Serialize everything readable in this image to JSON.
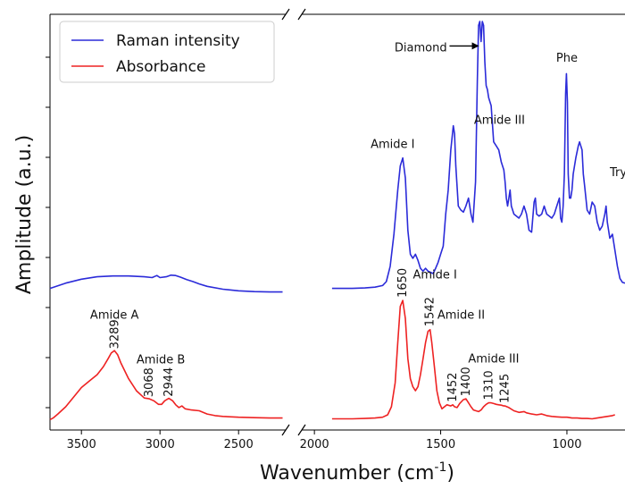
{
  "chart_data": {
    "type": "line",
    "xlabel": "Wavenumber (cm",
    "xlabel_sup": "-1",
    "xlabel_close": ")",
    "ylabel": "Amplitude (a.u.)",
    "broken_x_axis": true,
    "xlim_left": [
      3700,
      2200
    ],
    "xlim_right": [
      2050,
      770
    ],
    "xticks_left": [
      "3500",
      "3000",
      "2500"
    ],
    "xticks_right": [
      "2000",
      "1500",
      "1000"
    ],
    "legend_position": "top-left",
    "series": [
      {
        "name": "Raman intensity",
        "color": "#2b2bd9",
        "left": [
          [
            3700,
            0.335
          ],
          [
            3600,
            0.348
          ],
          [
            3500,
            0.358
          ],
          [
            3400,
            0.364
          ],
          [
            3300,
            0.366
          ],
          [
            3200,
            0.366
          ],
          [
            3100,
            0.364
          ],
          [
            3050,
            0.362
          ],
          [
            3020,
            0.367
          ],
          [
            3000,
            0.362
          ],
          [
            2960,
            0.364
          ],
          [
            2930,
            0.368
          ],
          [
            2900,
            0.367
          ],
          [
            2870,
            0.363
          ],
          [
            2830,
            0.357
          ],
          [
            2790,
            0.352
          ],
          [
            2750,
            0.346
          ],
          [
            2700,
            0.34
          ],
          [
            2600,
            0.333
          ],
          [
            2500,
            0.329
          ],
          [
            2400,
            0.327
          ],
          [
            2300,
            0.326
          ],
          [
            2220,
            0.326
          ]
        ],
        "right": [
          [
            1930,
            0.335
          ],
          [
            1900,
            0.335
          ],
          [
            1850,
            0.335
          ],
          [
            1800,
            0.336
          ],
          [
            1760,
            0.338
          ],
          [
            1730,
            0.342
          ],
          [
            1715,
            0.352
          ],
          [
            1700,
            0.39
          ],
          [
            1685,
            0.47
          ],
          [
            1670,
            0.58
          ],
          [
            1660,
            0.64
          ],
          [
            1650,
            0.66
          ],
          [
            1640,
            0.61
          ],
          [
            1630,
            0.48
          ],
          [
            1620,
            0.42
          ],
          [
            1610,
            0.41
          ],
          [
            1600,
            0.42
          ],
          [
            1590,
            0.405
          ],
          [
            1580,
            0.385
          ],
          [
            1570,
            0.378
          ],
          [
            1560,
            0.385
          ],
          [
            1550,
            0.378
          ],
          [
            1540,
            0.375
          ],
          [
            1530,
            0.372
          ],
          [
            1520,
            0.385
          ],
          [
            1510,
            0.4
          ],
          [
            1500,
            0.42
          ],
          [
            1490,
            0.44
          ],
          [
            1480,
            0.52
          ],
          [
            1470,
            0.58
          ],
          [
            1460,
            0.68
          ],
          [
            1450,
            0.74
          ],
          [
            1445,
            0.72
          ],
          [
            1440,
            0.64
          ],
          [
            1430,
            0.54
          ],
          [
            1420,
            0.53
          ],
          [
            1410,
            0.525
          ],
          [
            1400,
            0.54
          ],
          [
            1390,
            0.56
          ],
          [
            1380,
            0.52
          ],
          [
            1372,
            0.5
          ],
          [
            1362,
            0.6
          ],
          [
            1355,
            0.85
          ],
          [
            1350,
            0.99
          ],
          [
            1345,
            1.0
          ],
          [
            1340,
            0.95
          ],
          [
            1335,
            1.0
          ],
          [
            1330,
            0.99
          ],
          [
            1325,
            0.9
          ],
          [
            1320,
            0.84
          ],
          [
            1315,
            0.83
          ],
          [
            1310,
            0.81
          ],
          [
            1300,
            0.79
          ],
          [
            1290,
            0.7
          ],
          [
            1280,
            0.69
          ],
          [
            1270,
            0.68
          ],
          [
            1260,
            0.65
          ],
          [
            1250,
            0.63
          ],
          [
            1245,
            0.6
          ],
          [
            1240,
            0.56
          ],
          [
            1235,
            0.54
          ],
          [
            1230,
            0.56
          ],
          [
            1225,
            0.58
          ],
          [
            1220,
            0.54
          ],
          [
            1210,
            0.52
          ],
          [
            1200,
            0.515
          ],
          [
            1190,
            0.51
          ],
          [
            1180,
            0.52
          ],
          [
            1170,
            0.54
          ],
          [
            1160,
            0.52
          ],
          [
            1150,
            0.48
          ],
          [
            1140,
            0.475
          ],
          [
            1130,
            0.55
          ],
          [
            1125,
            0.56
          ],
          [
            1120,
            0.52
          ],
          [
            1110,
            0.515
          ],
          [
            1100,
            0.52
          ],
          [
            1090,
            0.54
          ],
          [
            1080,
            0.52
          ],
          [
            1070,
            0.515
          ],
          [
            1060,
            0.51
          ],
          [
            1050,
            0.52
          ],
          [
            1040,
            0.54
          ],
          [
            1030,
            0.56
          ],
          [
            1025,
            0.51
          ],
          [
            1020,
            0.5
          ],
          [
            1015,
            0.54
          ],
          [
            1010,
            0.62
          ],
          [
            1005,
            0.82
          ],
          [
            1002,
            0.87
          ],
          [
            998,
            0.8
          ],
          [
            995,
            0.62
          ],
          [
            990,
            0.56
          ],
          [
            985,
            0.56
          ],
          [
            980,
            0.58
          ],
          [
            975,
            0.62
          ],
          [
            965,
            0.66
          ],
          [
            955,
            0.69
          ],
          [
            950,
            0.7
          ],
          [
            945,
            0.69
          ],
          [
            940,
            0.68
          ],
          [
            935,
            0.62
          ],
          [
            930,
            0.59
          ],
          [
            925,
            0.56
          ],
          [
            920,
            0.53
          ],
          [
            910,
            0.52
          ],
          [
            900,
            0.55
          ],
          [
            890,
            0.54
          ],
          [
            880,
            0.5
          ],
          [
            870,
            0.48
          ],
          [
            860,
            0.49
          ],
          [
            850,
            0.52
          ],
          [
            845,
            0.54
          ],
          [
            840,
            0.5
          ],
          [
            830,
            0.46
          ],
          [
            820,
            0.47
          ],
          [
            810,
            0.43
          ],
          [
            800,
            0.39
          ],
          [
            790,
            0.36
          ],
          [
            780,
            0.35
          ],
          [
            770,
            0.348
          ]
        ]
      },
      {
        "name": "Absorbance",
        "color": "#ee2222",
        "left": [
          [
            3700,
            0.008
          ],
          [
            3680,
            0.012
          ],
          [
            3650,
            0.022
          ],
          [
            3600,
            0.04
          ],
          [
            3550,
            0.064
          ],
          [
            3500,
            0.088
          ],
          [
            3450,
            0.104
          ],
          [
            3400,
            0.12
          ],
          [
            3360,
            0.14
          ],
          [
            3330,
            0.16
          ],
          [
            3310,
            0.174
          ],
          [
            3290,
            0.18
          ],
          [
            3270,
            0.17
          ],
          [
            3250,
            0.15
          ],
          [
            3200,
            0.11
          ],
          [
            3150,
            0.08
          ],
          [
            3100,
            0.062
          ],
          [
            3068,
            0.06
          ],
          [
            3040,
            0.055
          ],
          [
            3010,
            0.046
          ],
          [
            2990,
            0.046
          ],
          [
            2970,
            0.055
          ],
          [
            2944,
            0.061
          ],
          [
            2920,
            0.055
          ],
          [
            2900,
            0.045
          ],
          [
            2880,
            0.038
          ],
          [
            2860,
            0.042
          ],
          [
            2840,
            0.035
          ],
          [
            2800,
            0.032
          ],
          [
            2750,
            0.03
          ],
          [
            2700,
            0.022
          ],
          [
            2650,
            0.018
          ],
          [
            2600,
            0.016
          ],
          [
            2500,
            0.014
          ],
          [
            2400,
            0.013
          ],
          [
            2300,
            0.012
          ],
          [
            2220,
            0.012
          ]
        ],
        "right": [
          [
            1930,
            0.01
          ],
          [
            1850,
            0.01
          ],
          [
            1800,
            0.011
          ],
          [
            1760,
            0.012
          ],
          [
            1730,
            0.014
          ],
          [
            1710,
            0.02
          ],
          [
            1695,
            0.04
          ],
          [
            1680,
            0.1
          ],
          [
            1670,
            0.2
          ],
          [
            1660,
            0.29
          ],
          [
            1650,
            0.305
          ],
          [
            1640,
            0.26
          ],
          [
            1630,
            0.16
          ],
          [
            1620,
            0.11
          ],
          [
            1610,
            0.09
          ],
          [
            1600,
            0.08
          ],
          [
            1590,
            0.09
          ],
          [
            1580,
            0.12
          ],
          [
            1570,
            0.16
          ],
          [
            1560,
            0.2
          ],
          [
            1550,
            0.228
          ],
          [
            1542,
            0.232
          ],
          [
            1535,
            0.2
          ],
          [
            1525,
            0.14
          ],
          [
            1515,
            0.08
          ],
          [
            1505,
            0.05
          ],
          [
            1495,
            0.035
          ],
          [
            1485,
            0.04
          ],
          [
            1475,
            0.045
          ],
          [
            1460,
            0.042
          ],
          [
            1452,
            0.045
          ],
          [
            1445,
            0.04
          ],
          [
            1435,
            0.038
          ],
          [
            1425,
            0.048
          ],
          [
            1410,
            0.058
          ],
          [
            1400,
            0.06
          ],
          [
            1390,
            0.05
          ],
          [
            1380,
            0.04
          ],
          [
            1370,
            0.032
          ],
          [
            1360,
            0.03
          ],
          [
            1350,
            0.028
          ],
          [
            1340,
            0.032
          ],
          [
            1330,
            0.04
          ],
          [
            1320,
            0.046
          ],
          [
            1310,
            0.05
          ],
          [
            1300,
            0.05
          ],
          [
            1290,
            0.048
          ],
          [
            1280,
            0.046
          ],
          [
            1270,
            0.045
          ],
          [
            1260,
            0.044
          ],
          [
            1250,
            0.042
          ],
          [
            1245,
            0.042
          ],
          [
            1230,
            0.038
          ],
          [
            1210,
            0.03
          ],
          [
            1190,
            0.026
          ],
          [
            1170,
            0.028
          ],
          [
            1160,
            0.025
          ],
          [
            1140,
            0.022
          ],
          [
            1120,
            0.02
          ],
          [
            1100,
            0.022
          ],
          [
            1080,
            0.018
          ],
          [
            1060,
            0.016
          ],
          [
            1040,
            0.015
          ],
          [
            1020,
            0.014
          ],
          [
            1000,
            0.014
          ],
          [
            980,
            0.012
          ],
          [
            960,
            0.012
          ],
          [
            940,
            0.011
          ],
          [
            920,
            0.011
          ],
          [
            900,
            0.01
          ],
          [
            880,
            0.012
          ],
          [
            860,
            0.014
          ],
          [
            840,
            0.016
          ],
          [
            820,
            0.018
          ],
          [
            810,
            0.02
          ]
        ]
      }
    ],
    "annotations": {
      "left": [
        {
          "text": "Amide A",
          "x": 3290,
          "y": 0.26,
          "anchor": "middle"
        },
        {
          "text": "Amide B",
          "x": 2995,
          "y": 0.148,
          "anchor": "middle"
        }
      ],
      "left_vertical": [
        {
          "text": "3289",
          "x": 3289,
          "y": 0.184
        },
        {
          "text": "3068",
          "x": 3068,
          "y": 0.064
        },
        {
          "text": "2944",
          "x": 2944,
          "y": 0.065
        }
      ],
      "right": [
        {
          "text": "Amide I",
          "x": 1690,
          "y": 0.685,
          "anchor": "middle"
        },
        {
          "text": "Amide III",
          "x": 1267,
          "y": 0.745,
          "anchor": "middle"
        },
        {
          "text": "Phe",
          "x": 1000,
          "y": 0.9,
          "anchor": "middle"
        },
        {
          "text": "Try",
          "x": 830,
          "y": 0.615,
          "anchor": "start"
        },
        {
          "text": "Amide I",
          "x": 1610,
          "y": 0.36,
          "anchor": "start"
        },
        {
          "text": "Amide II",
          "x": 1513,
          "y": 0.26,
          "anchor": "start"
        },
        {
          "text": "Amide III",
          "x": 1290,
          "y": 0.15,
          "anchor": "middle"
        },
        {
          "text": "Diamond",
          "x": 1475,
          "y": 0.925,
          "anchor": "end"
        }
      ],
      "right_vertical": [
        {
          "text": "1650",
          "x": 1650,
          "y": 0.312
        },
        {
          "text": "1542",
          "x": 1542,
          "y": 0.24
        },
        {
          "text": "1452",
          "x": 1452,
          "y": 0.052
        },
        {
          "text": "1400",
          "x": 1400,
          "y": 0.066
        },
        {
          "text": "1310",
          "x": 1310,
          "y": 0.057
        },
        {
          "text": "1245",
          "x": 1245,
          "y": 0.049
        }
      ],
      "diamond_arrow": {
        "from": [
          1465,
          0.93
        ],
        "to": [
          1355,
          0.93
        ]
      }
    }
  }
}
